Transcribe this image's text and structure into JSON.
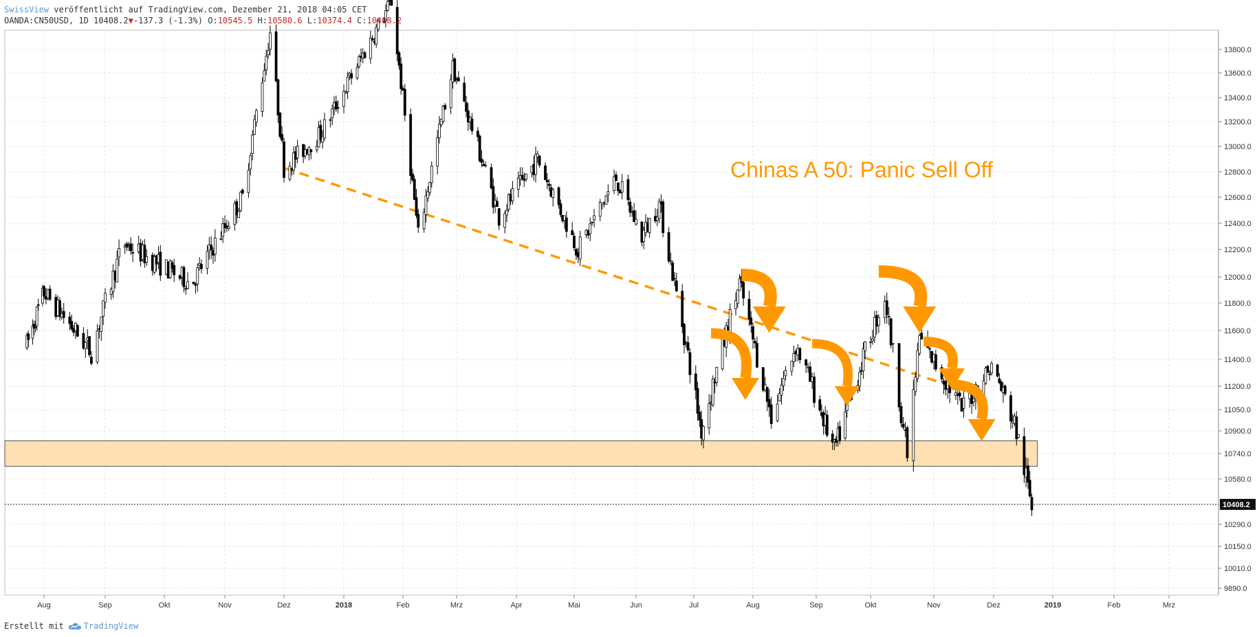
{
  "header": {
    "publisher": "SwissView",
    "published_text": "veröffentlicht auf TradingView.com, Dezember 21, 2018 04:05 CET",
    "symbol_line": "OANDA:CN50USD, 1D 10408.2",
    "change": "-137.3 (-1.3%)",
    "o_label": "O:",
    "o_value": "10545.5",
    "h_label": "H:",
    "h_value": "10580.6",
    "l_label": "L:",
    "l_value": "10374.4",
    "c_label": "C:",
    "c_value": "10408.2"
  },
  "footer": {
    "created_with": "Erstellt mit",
    "brand": "TradingView"
  },
  "colors": {
    "accent_orange": "#ff9800",
    "zone_fill": "#ffe0b2",
    "candle": "#000000",
    "brand_blue": "#5b9bd5"
  },
  "chart_data": {
    "type": "candlestick",
    "title": "",
    "annotation": "Chinas A 50: Panic Sell Off",
    "y_ticks": [
      13800,
      13600,
      13400,
      13200,
      13000,
      12800,
      12600,
      12400,
      12200,
      12000,
      11800,
      11600,
      11400,
      11200,
      11050,
      10900,
      10740,
      10580,
      10290,
      10150,
      10010,
      9890
    ],
    "y_tick_labels": [
      "13800.0",
      "13600.0",
      "13400.0",
      "13200.0",
      "13000.0",
      "12800.0",
      "12600.0",
      "12400.0",
      "12200.0",
      "12000.0",
      "11800.0",
      "11600.0",
      "11400.0",
      "11200.0",
      "11050.0",
      "10900.0",
      "10740.0",
      "10580.0",
      "10290.0",
      "10150.0",
      "10010.0",
      "9890.0"
    ],
    "x_ticks": [
      "Aug",
      "Sep",
      "Okt",
      "Nov",
      "Dez",
      "2018",
      "Feb",
      "Mrz",
      "Apr",
      "Mai",
      "Jun",
      "Jul",
      "Aug",
      "Sep",
      "Okt",
      "Nov",
      "Dez",
      "2019",
      "Feb",
      "Mrz"
    ],
    "last_price": 10408.2,
    "last_price_label": "10408.2",
    "support_zone": [
      10660,
      10830
    ],
    "trendline": [
      {
        "x": "2017-12-01",
        "y": 12830
      },
      {
        "x": "2018-11-22",
        "y": 11150
      }
    ],
    "swing_points": [
      {
        "x": "2017-07-20",
        "y": 11500
      },
      {
        "x": "2017-08-01",
        "y": 11880
      },
      {
        "x": "2017-08-25",
        "y": 11450
      },
      {
        "x": "2017-09-10",
        "y": 12250
      },
      {
        "x": "2017-10-15",
        "y": 11950
      },
      {
        "x": "2017-11-10",
        "y": 12600
      },
      {
        "x": "2017-11-24",
        "y": 13950
      },
      {
        "x": "2017-12-01",
        "y": 12830
      },
      {
        "x": "2017-12-20",
        "y": 13100
      },
      {
        "x": "2018-01-26",
        "y": 14200
      },
      {
        "x": "2018-02-09",
        "y": 12300
      },
      {
        "x": "2018-02-27",
        "y": 13650
      },
      {
        "x": "2018-03-23",
        "y": 12450
      },
      {
        "x": "2018-04-12",
        "y": 12900
      },
      {
        "x": "2018-05-03",
        "y": 12200
      },
      {
        "x": "2018-05-22",
        "y": 12750
      },
      {
        "x": "2018-06-04",
        "y": 12300
      },
      {
        "x": "2018-06-13",
        "y": 12550
      },
      {
        "x": "2018-07-05",
        "y": 10900
      },
      {
        "x": "2018-07-25",
        "y": 11950
      },
      {
        "x": "2018-08-10",
        "y": 11000
      },
      {
        "x": "2018-08-22",
        "y": 11500
      },
      {
        "x": "2018-09-11",
        "y": 10760
      },
      {
        "x": "2018-10-08",
        "y": 11850
      },
      {
        "x": "2018-10-19",
        "y": 10730
      },
      {
        "x": "2018-10-25",
        "y": 11550
      },
      {
        "x": "2018-11-15",
        "y": 11050
      },
      {
        "x": "2018-11-30",
        "y": 11350
      },
      {
        "x": "2018-12-12",
        "y": 10950
      },
      {
        "x": "2018-12-21",
        "y": 10408
      }
    ]
  }
}
